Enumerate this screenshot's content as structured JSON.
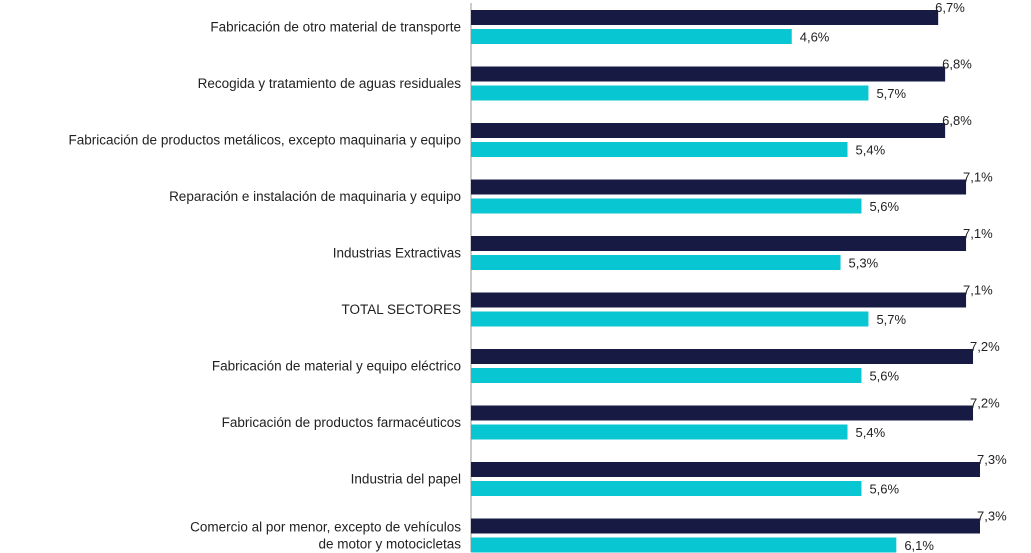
{
  "chart_data": {
    "type": "bar",
    "orientation": "horizontal",
    "title": "",
    "xlabel": "",
    "ylabel": "",
    "grid": false,
    "legend": "none",
    "xlim": [
      0,
      7.3
    ],
    "value_suffix": "%",
    "categories": [
      [
        "Fabricación de otro material de transporte"
      ],
      [
        "Recogida y tratamiento de aguas residuales"
      ],
      [
        "Fabricación de productos metálicos, excepto maquinaria y equipo"
      ],
      [
        "Reparación e instalación de maquinaria y equipo"
      ],
      [
        "Industrias Extractivas"
      ],
      [
        "TOTAL SECTORES"
      ],
      [
        "Fabricación de material y equipo eléctrico"
      ],
      [
        "Fabricación de productos farmacéuticos"
      ],
      [
        "Industria del papel"
      ],
      [
        "Comercio al por menor, excepto de vehículos",
        "de motor y motocicletas"
      ]
    ],
    "series": [
      {
        "color": "#171b44",
        "values": [
          6.7,
          6.8,
          6.8,
          7.1,
          7.1,
          7.1,
          7.2,
          7.2,
          7.3,
          7.3
        ],
        "labels": [
          "6,7%",
          "6,8%",
          "6,8%",
          "7,1%",
          "7,1%",
          "7,1%",
          "7,2%",
          "7,2%",
          "7,3%",
          "7,3%"
        ]
      },
      {
        "color": "#08c6d2",
        "values": [
          4.6,
          5.7,
          5.4,
          5.6,
          5.3,
          5.7,
          5.6,
          5.4,
          5.6,
          6.1
        ],
        "labels": [
          "4,6%",
          "5,7%",
          "5,4%",
          "5,6%",
          "5,3%",
          "5,7%",
          "5,6%",
          "5,4%",
          "5,6%",
          "6,1%"
        ]
      }
    ]
  }
}
